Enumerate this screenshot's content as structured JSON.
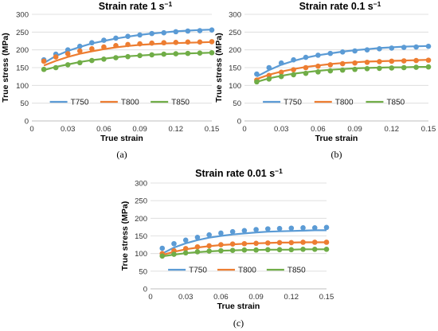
{
  "chart_data": [
    {
      "type": "scatter",
      "panel_label": "(a)",
      "title_main": "Strain rate 1 s",
      "title_exp": "−1",
      "xlabel": "True strain",
      "ylabel": "True stress (MPa)",
      "xlim": [
        0,
        0.15
      ],
      "ylim": [
        0,
        300
      ],
      "xticks": [
        "0",
        "0.03",
        "0.06",
        "0.09",
        "0.12",
        "0.15"
      ],
      "yticks": [
        "0",
        "50",
        "100",
        "150",
        "200",
        "250",
        "300"
      ],
      "grid": "horizontal",
      "legend": "bottom",
      "x": [
        0.01,
        0.02,
        0.03,
        0.04,
        0.05,
        0.06,
        0.07,
        0.08,
        0.09,
        0.1,
        0.11,
        0.12,
        0.13,
        0.14,
        0.15
      ],
      "series": [
        {
          "name": "T750",
          "color": "#5b9bd5",
          "points": [
            172,
            188,
            200,
            210,
            220,
            227,
            233,
            238,
            242,
            246,
            248,
            251,
            253,
            254,
            256
          ],
          "fit": [
            163,
            183,
            197,
            208,
            218,
            225,
            232,
            237,
            242,
            246,
            249,
            252,
            254,
            256,
            257
          ]
        },
        {
          "name": "T800",
          "color": "#ed7d31",
          "points": [
            168,
            180,
            189,
            197,
            203,
            208,
            212,
            215,
            217,
            219,
            220,
            221,
            222,
            222,
            223
          ],
          "fit": [
            156,
            169,
            180,
            189,
            196,
            202,
            207,
            211,
            214,
            216,
            218,
            219,
            220,
            221,
            222
          ]
        },
        {
          "name": "T850",
          "color": "#70ad47",
          "points": [
            145,
            150,
            158,
            164,
            170,
            174,
            178,
            181,
            184,
            186,
            188,
            189,
            190,
            191,
            192
          ],
          "fit": [
            143,
            152,
            159,
            166,
            171,
            175,
            179,
            182,
            184,
            186,
            188,
            189,
            190,
            191,
            192
          ]
        }
      ]
    },
    {
      "type": "scatter",
      "panel_label": "(b)",
      "title_main": "Strain rate 0.1 s",
      "title_exp": "−1",
      "xlabel": "True strain",
      "ylabel": "True stress (MPa)",
      "xlim": [
        0,
        0.15
      ],
      "ylim": [
        0,
        300
      ],
      "xticks": [
        "0",
        "0.03",
        "0.06",
        "0.09",
        "0.12",
        "0.15"
      ],
      "yticks": [
        "0",
        "50",
        "100",
        "150",
        "200",
        "250",
        "300"
      ],
      "grid": "horizontal",
      "legend": "bottom",
      "x": [
        0.01,
        0.02,
        0.03,
        0.04,
        0.05,
        0.06,
        0.07,
        0.08,
        0.09,
        0.1,
        0.11,
        0.12,
        0.13,
        0.14,
        0.15
      ],
      "series": [
        {
          "name": "T750",
          "color": "#5b9bd5",
          "points": [
            132,
            150,
            163,
            172,
            179,
            185,
            190,
            194,
            197,
            200,
            203,
            205,
            207,
            208,
            210
          ],
          "fit": [
            125,
            143,
            158,
            169,
            178,
            185,
            190,
            195,
            199,
            202,
            205,
            207,
            209,
            210,
            211
          ]
        },
        {
          "name": "T800",
          "color": "#ed7d31",
          "points": [
            115,
            128,
            137,
            144,
            150,
            154,
            158,
            161,
            163,
            165,
            167,
            168,
            169,
            170,
            171
          ],
          "fit": [
            118,
            130,
            139,
            146,
            152,
            156,
            160,
            163,
            165,
            167,
            168,
            169,
            170,
            171,
            172
          ]
        },
        {
          "name": "T850",
          "color": "#70ad47",
          "points": [
            110,
            118,
            125,
            130,
            134,
            138,
            141,
            143,
            145,
            147,
            148,
            149,
            150,
            151,
            152
          ],
          "fit": [
            110,
            120,
            127,
            133,
            137,
            141,
            144,
            146,
            148,
            149,
            150,
            151,
            151,
            152,
            152
          ]
        }
      ]
    },
    {
      "type": "scatter",
      "panel_label": "(c)",
      "title_main": "Strain rate 0.01 s",
      "title_exp": "−1",
      "xlabel": "True strain",
      "ylabel": "True stress (MPa)",
      "xlim": [
        0,
        0.15
      ],
      "ylim": [
        0,
        300
      ],
      "xticks": [
        "0",
        "0.03",
        "0.06",
        "0.09",
        "0.12",
        "0.15"
      ],
      "yticks": [
        "0",
        "50",
        "100",
        "150",
        "200",
        "250",
        "300"
      ],
      "grid": "horizontal",
      "legend": "bottom",
      "x": [
        0.01,
        0.02,
        0.03,
        0.04,
        0.05,
        0.06,
        0.07,
        0.08,
        0.09,
        0.1,
        0.11,
        0.12,
        0.13,
        0.14,
        0.15
      ],
      "series": [
        {
          "name": "T750",
          "color": "#5b9bd5",
          "points": [
            115,
            128,
            138,
            146,
            153,
            158,
            162,
            165,
            168,
            170,
            171,
            172,
            173,
            173,
            174
          ],
          "fit": [
            100,
            117,
            129,
            138,
            145,
            150,
            154,
            157,
            160,
            162,
            163,
            164,
            165,
            166,
            166
          ]
        },
        {
          "name": "T800",
          "color": "#ed7d31",
          "points": [
            100,
            108,
            114,
            119,
            122,
            125,
            127,
            128,
            129,
            130,
            131,
            131,
            132,
            132,
            132
          ],
          "fit": [
            96,
            105,
            112,
            117,
            121,
            124,
            126,
            128,
            129,
            130,
            131,
            131,
            132,
            132,
            132
          ]
        },
        {
          "name": "T850",
          "color": "#70ad47",
          "points": [
            93,
            98,
            102,
            105,
            107,
            108,
            109,
            110,
            110,
            111,
            111,
            111,
            112,
            112,
            112
          ],
          "fit": [
            92,
            97,
            101,
            104,
            106,
            108,
            109,
            110,
            110,
            111,
            111,
            111,
            112,
            112,
            112
          ]
        }
      ]
    }
  ]
}
